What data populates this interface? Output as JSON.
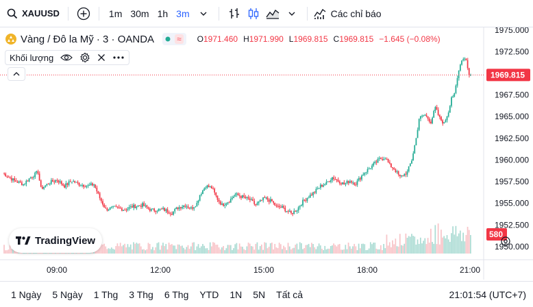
{
  "toolbar": {
    "symbol": "XAUUSD",
    "intervals": [
      "1m",
      "30m",
      "1h",
      "3m"
    ],
    "active_interval": "3m",
    "indicators_label": "Các chỉ báo"
  },
  "legend": {
    "title": "Vàng / Đô la Mỹ · 3 · OANDA",
    "badge_symbol": "≈",
    "o_label": "O",
    "o_value": "1971.460",
    "h_label": "H",
    "h_value": "1971.990",
    "l_label": "L",
    "l_value": "1969.815",
    "c_label": "C",
    "c_value": "1969.815",
    "change": "−1.645 (−0.08%)",
    "volume_label": "Khối lượng"
  },
  "watermark": {
    "text": "TradingView"
  },
  "bottom": {
    "ranges": [
      "1 Ngày",
      "5 Ngày",
      "1 Thg",
      "3 Thg",
      "6 Thg",
      "YTD",
      "1N",
      "5N",
      "Tất cả"
    ],
    "clock": "21:01:54 (UTC+7)"
  },
  "colors": {
    "up": "#22ab94",
    "down": "#f23645",
    "up_vol": "#acdcd4",
    "down_vol": "#f8c4c8",
    "accent": "#2962ff",
    "badge_green": "#22ab94",
    "badge_pink": "#f7525f"
  },
  "chart_data": {
    "type": "candlestick",
    "y_ticks": [
      1975.0,
      1972.5,
      1970.0,
      1967.5,
      1965.0,
      1962.5,
      1960.0,
      1957.5,
      1955.0,
      1952.5,
      1950.0
    ],
    "y_tick_labels": [
      "1975.000",
      "1972.500",
      "1970.000",
      "1967.500",
      "1965.000",
      "1962.500",
      "1960.000",
      "1957.500",
      "1955.000",
      "1952.500",
      "1950.000"
    ],
    "ylim": [
      1949.2,
      1975.3
    ],
    "x_tick_labels": [
      "09:00",
      "12:00",
      "15:00",
      "18:00",
      "21:00"
    ],
    "last_price": 1969.815,
    "last_price_label": "1969.815",
    "last_volume": 580,
    "last_volume_label": "580",
    "close_path": [
      [
        0,
        1958.5
      ],
      [
        8,
        1957.6
      ],
      [
        14,
        1957.2
      ],
      [
        19,
        1958.0
      ],
      [
        24,
        1958.6
      ],
      [
        26,
        1956.7
      ],
      [
        32,
        1957.4
      ],
      [
        37,
        1957.7
      ],
      [
        42,
        1957.0
      ],
      [
        47,
        1957.6
      ],
      [
        52,
        1957.2
      ],
      [
        58,
        1957.0
      ],
      [
        62,
        1957.2
      ],
      [
        66,
        1955.6
      ],
      [
        70,
        1954.3
      ],
      [
        76,
        1954.5
      ],
      [
        83,
        1954.3
      ],
      [
        88,
        1954.6
      ],
      [
        95,
        1954.8
      ],
      [
        101,
        1954.2
      ],
      [
        109,
        1954.3
      ],
      [
        115,
        1953.9
      ],
      [
        119,
        1954.5
      ],
      [
        124,
        1954.8
      ],
      [
        128,
        1954.4
      ],
      [
        132,
        1955.0
      ],
      [
        134,
        1956.0
      ],
      [
        138,
        1957.0
      ],
      [
        142,
        1956.8
      ],
      [
        146,
        1955.5
      ],
      [
        149,
        1954.8
      ],
      [
        154,
        1955.3
      ],
      [
        158,
        1956.0
      ],
      [
        162,
        1955.8
      ],
      [
        168,
        1955.4
      ],
      [
        172,
        1954.8
      ],
      [
        178,
        1955.6
      ],
      [
        183,
        1955.2
      ],
      [
        186,
        1954.6
      ],
      [
        190,
        1954.5
      ],
      [
        196,
        1953.8
      ],
      [
        200,
        1954.3
      ],
      [
        204,
        1955.2
      ],
      [
        208,
        1955.8
      ],
      [
        212,
        1956.3
      ],
      [
        216,
        1957.0
      ],
      [
        220,
        1957.3
      ],
      [
        224,
        1958.0
      ],
      [
        228,
        1957.6
      ],
      [
        232,
        1957.2
      ],
      [
        236,
        1957.6
      ],
      [
        240,
        1957.3
      ],
      [
        245,
        1958.4
      ],
      [
        249,
        1959.0
      ],
      [
        253,
        1959.6
      ],
      [
        256,
        1960.1
      ],
      [
        260,
        1960.3
      ],
      [
        263,
        1959.4
      ],
      [
        266,
        1959.0
      ],
      [
        270,
        1958.0
      ],
      [
        275,
        1958.6
      ],
      [
        278,
        1960.0
      ],
      [
        281,
        1962.5
      ],
      [
        283,
        1964.8
      ],
      [
        287,
        1965.2
      ],
      [
        291,
        1964.4
      ],
      [
        294,
        1966.0
      ],
      [
        297,
        1964.8
      ],
      [
        300,
        1964.2
      ],
      [
        303,
        1965.6
      ],
      [
        305,
        1967.3
      ],
      [
        307,
        1967.5
      ],
      [
        309,
        1969.4
      ],
      [
        311,
        1971.2
      ],
      [
        313,
        1971.8
      ],
      [
        315,
        1971.6
      ],
      [
        317,
        1969.8
      ]
    ]
  }
}
